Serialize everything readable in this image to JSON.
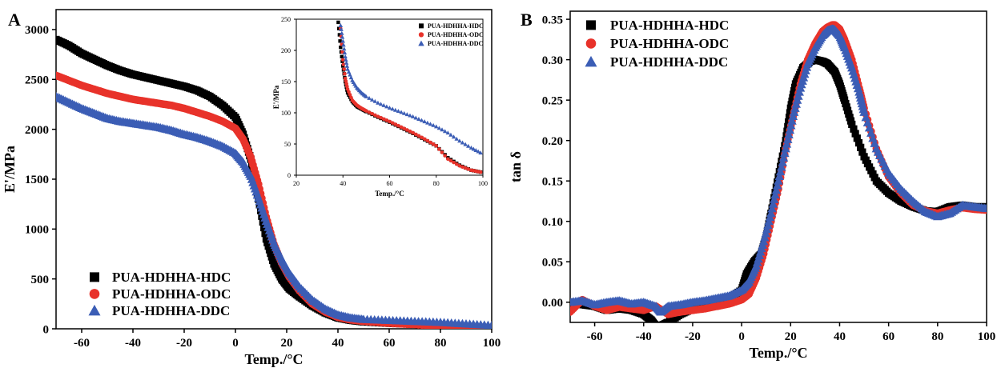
{
  "figure": {
    "panel_labels": [
      "A",
      "B"
    ]
  },
  "chart_data": [
    {
      "id": "A",
      "type": "scatter",
      "xlabel": "Temp./°C",
      "ylabel": "E'/MPa",
      "xlim": [
        -70,
        100
      ],
      "ylim": [
        0,
        3200
      ],
      "xticks": [
        -60,
        -40,
        -20,
        0,
        20,
        40,
        60,
        80,
        100
      ],
      "yticks": [
        0,
        500,
        1000,
        1500,
        2000,
        2500,
        3000
      ],
      "grid": false,
      "legend": "bottom-left",
      "series": [
        {
          "name": "PUA-HDHHA-HDC",
          "marker": "square",
          "color": "#000000",
          "x": [
            -70,
            -65,
            -60,
            -55,
            -50,
            -45,
            -40,
            -35,
            -30,
            -25,
            -20,
            -15,
            -10,
            -5,
            0,
            3,
            6,
            9,
            12,
            15,
            18,
            21,
            25,
            30,
            35,
            40,
            45,
            50,
            60,
            70,
            80,
            90,
            100
          ],
          "y": [
            2900,
            2840,
            2760,
            2700,
            2640,
            2590,
            2550,
            2520,
            2490,
            2460,
            2430,
            2390,
            2330,
            2240,
            2120,
            1950,
            1700,
            1300,
            900,
            650,
            500,
            400,
            320,
            230,
            160,
            110,
            85,
            70,
            55,
            45,
            30,
            15,
            5
          ]
        },
        {
          "name": "PUA-HDHHA-ODC",
          "marker": "circle",
          "color": "#e8322a",
          "x": [
            -70,
            -65,
            -60,
            -55,
            -50,
            -45,
            -40,
            -35,
            -30,
            -25,
            -20,
            -15,
            -10,
            -5,
            0,
            3,
            6,
            9,
            12,
            15,
            18,
            21,
            25,
            30,
            35,
            40,
            45,
            50,
            60,
            70,
            80,
            90,
            100
          ],
          "y": [
            2540,
            2490,
            2440,
            2400,
            2360,
            2330,
            2300,
            2280,
            2260,
            2240,
            2210,
            2170,
            2130,
            2080,
            2010,
            1900,
            1720,
            1450,
            1120,
            850,
            660,
            520,
            380,
            250,
            170,
            115,
            90,
            75,
            55,
            42,
            25,
            12,
            5
          ]
        },
        {
          "name": "PUA-HDHHA-DDC",
          "marker": "triangle",
          "color": "#3b5db5",
          "x": [
            -70,
            -65,
            -60,
            -55,
            -50,
            -45,
            -40,
            -35,
            -30,
            -25,
            -20,
            -15,
            -10,
            -5,
            0,
            3,
            6,
            9,
            12,
            15,
            18,
            21,
            25,
            30,
            35,
            40,
            45,
            50,
            60,
            70,
            80,
            90,
            100
          ],
          "y": [
            2330,
            2270,
            2210,
            2160,
            2110,
            2080,
            2060,
            2040,
            2020,
            1990,
            1950,
            1920,
            1880,
            1830,
            1760,
            1670,
            1530,
            1310,
            1080,
            860,
            700,
            560,
            420,
            290,
            200,
            140,
            110,
            95,
            85,
            75,
            65,
            50,
            35
          ]
        }
      ],
      "inset": {
        "type": "scatter",
        "xlabel": "Temp./°C",
        "ylabel": "E'/MPa",
        "xlim": [
          20,
          100
        ],
        "ylim": [
          0,
          250
        ],
        "xticks": [
          20,
          40,
          60,
          80,
          100
        ],
        "yticks": [
          0,
          50,
          100,
          150,
          200,
          250
        ],
        "legend": "top-right",
        "series": [
          {
            "name": "PUA-HDHHA-HDC",
            "marker": "square",
            "color": "#000000",
            "x": [
              38,
              39,
              40,
              41,
              42,
              44,
              46,
              48,
              50,
              55,
              60,
              65,
              70,
              75,
              80,
              85,
              90,
              95,
              99
            ],
            "y": [
              245,
              205,
              175,
              150,
              132,
              118,
              110,
              106,
              102,
              93,
              85,
              76,
              67,
              57,
              47,
              28,
              16,
              8,
              5
            ]
          },
          {
            "name": "PUA-HDHHA-ODC",
            "marker": "circle",
            "color": "#e8322a",
            "x": [
              39,
              40,
              41,
              42,
              44,
              46,
              48,
              50,
              55,
              60,
              65,
              70,
              75,
              80,
              85,
              90,
              95,
              99
            ],
            "y": [
              235,
              185,
              155,
              138,
              120,
              112,
              107,
              103,
              94,
              86,
              77,
              68,
              58,
              47,
              26,
              15,
              8,
              5
            ]
          },
          {
            "name": "PUA-HDHHA-DDC",
            "marker": "triangle",
            "color": "#3b5db5",
            "x": [
              39,
              40,
              41,
              42,
              44,
              46,
              48,
              50,
              55,
              60,
              65,
              70,
              75,
              80,
              85,
              90,
              95,
              99
            ],
            "y": [
              240,
              215,
              190,
              170,
              152,
              140,
              132,
              126,
              116,
              108,
              101,
              94,
              86,
              78,
              68,
              55,
              44,
              36
            ]
          }
        ]
      }
    },
    {
      "id": "B",
      "type": "scatter",
      "xlabel": "Temp./°C",
      "ylabel": "tan δ",
      "xlim": [
        -70,
        100
      ],
      "ylim": [
        -0.025,
        0.36
      ],
      "xticks": [
        -60,
        -40,
        -20,
        0,
        20,
        40,
        60,
        80,
        100
      ],
      "yticks": [
        0.0,
        0.05,
        0.1,
        0.15,
        0.2,
        0.25,
        0.3,
        0.35
      ],
      "ytick_labels": [
        "0.00",
        "0.05",
        "0.10",
        "0.15",
        "0.20",
        "0.25",
        "0.30",
        "0.35"
      ],
      "grid": false,
      "legend": "top-left",
      "series": [
        {
          "name": "PUA-HDHHA-HDC",
          "marker": "square",
          "color": "#000000",
          "x": [
            -70,
            -65,
            -60,
            -55,
            -50,
            -45,
            -40,
            -37,
            -35,
            -32,
            -30,
            -25,
            -20,
            -15,
            -10,
            -5,
            0,
            2,
            5,
            8,
            10,
            12,
            15,
            18,
            20,
            22,
            25,
            28,
            30,
            33,
            35,
            38,
            40,
            42,
            45,
            50,
            55,
            60,
            65,
            70,
            75,
            80,
            85,
            90,
            95,
            100
          ],
          "y": [
            0,
            -0.003,
            -0.005,
            -0.01,
            -0.008,
            -0.01,
            -0.015,
            -0.022,
            -0.03,
            -0.028,
            -0.025,
            -0.015,
            -0.008,
            0.0,
            0.002,
            0.005,
            0.015,
            0.035,
            0.05,
            0.06,
            0.08,
            0.11,
            0.155,
            0.2,
            0.24,
            0.27,
            0.29,
            0.298,
            0.3,
            0.298,
            0.295,
            0.285,
            0.27,
            0.25,
            0.22,
            0.18,
            0.15,
            0.135,
            0.125,
            0.118,
            0.113,
            0.112,
            0.118,
            0.12,
            0.118,
            0.118
          ]
        },
        {
          "name": "PUA-HDHHA-ODC",
          "marker": "circle",
          "color": "#e8322a",
          "x": [
            -70,
            -65,
            -60,
            -55,
            -50,
            -45,
            -40,
            -35,
            -30,
            -25,
            -20,
            -15,
            -10,
            -5,
            0,
            3,
            6,
            9,
            12,
            15,
            18,
            21,
            24,
            27,
            30,
            33,
            35,
            37,
            38,
            40,
            42,
            45,
            48,
            50,
            55,
            60,
            65,
            70,
            75,
            80,
            85,
            90,
            95,
            100
          ],
          "y": [
            -0.012,
            0.003,
            -0.005,
            -0.01,
            -0.006,
            -0.008,
            -0.01,
            -0.005,
            -0.015,
            -0.012,
            -0.01,
            -0.008,
            -0.005,
            -0.002,
            0.003,
            0.01,
            0.03,
            0.06,
            0.1,
            0.14,
            0.19,
            0.23,
            0.27,
            0.3,
            0.32,
            0.335,
            0.34,
            0.343,
            0.343,
            0.338,
            0.325,
            0.3,
            0.265,
            0.24,
            0.19,
            0.155,
            0.135,
            0.12,
            0.113,
            0.11,
            0.114,
            0.117,
            0.115,
            0.114
          ]
        },
        {
          "name": "PUA-HDHHA-DDC",
          "marker": "triangle",
          "color": "#3b5db5",
          "x": [
            -70,
            -65,
            -60,
            -55,
            -50,
            -45,
            -40,
            -35,
            -33,
            -30,
            -25,
            -20,
            -15,
            -10,
            -5,
            0,
            3,
            6,
            9,
            12,
            15,
            18,
            21,
            24,
            27,
            30,
            33,
            35,
            37,
            38,
            40,
            42,
            45,
            48,
            50,
            55,
            60,
            65,
            70,
            75,
            80,
            85,
            90,
            95,
            100
          ],
          "y": [
            0,
            0.002,
            -0.003,
            0.0,
            0.002,
            -0.002,
            0.0,
            -0.005,
            -0.012,
            -0.005,
            -0.003,
            0.0,
            0.002,
            0.005,
            0.008,
            0.015,
            0.025,
            0.045,
            0.075,
            0.11,
            0.15,
            0.19,
            0.23,
            0.265,
            0.295,
            0.315,
            0.33,
            0.336,
            0.338,
            0.337,
            0.33,
            0.315,
            0.29,
            0.26,
            0.235,
            0.19,
            0.16,
            0.14,
            0.125,
            0.112,
            0.106,
            0.11,
            0.12,
            0.118,
            0.116
          ]
        }
      ]
    }
  ]
}
